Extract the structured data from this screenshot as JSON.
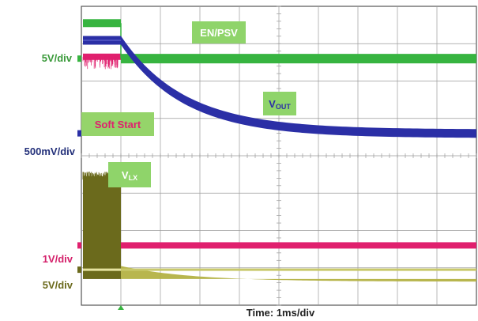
{
  "chart_data": {
    "type": "line",
    "title": "",
    "xlabel": "Time: 1ms/div",
    "x_divisions": 10,
    "y_divisions": 8,
    "grid": true,
    "time_unit": "ms",
    "step_time_ms": 1.0,
    "channels": [
      {
        "name": "EN/PSV",
        "scale_label": "5V/div",
        "scale": "5V/div",
        "color": "#37b440",
        "high_div": 7.55,
        "low_div": 6.6
      },
      {
        "name": "VOUT",
        "scale_label": "500mV/div",
        "scale": "500mV/div",
        "color": "#2b2fa6",
        "start_div": 7.1,
        "end_div": 4.6,
        "tau_ms": 1.6
      },
      {
        "name": "Soft Start",
        "scale_label": "1V/div",
        "scale": "1V/div",
        "color": "#e0206e",
        "high_div": 6.65,
        "low_div": 1.6
      },
      {
        "name": "VLX",
        "scale_label": "5V/div",
        "scale": "5V/div",
        "color": "#6b6a1c",
        "band_top_div": 3.45,
        "band_bottom_div": 0.7,
        "settle_div": 0.95,
        "tau_ms": 1.8
      }
    ],
    "annotations": [
      {
        "text": "EN/PSV",
        "for": "EN/PSV"
      },
      {
        "text": "V",
        "sub": "OUT",
        "for": "VOUT"
      },
      {
        "text": "Soft Start",
        "for": "Soft Start"
      },
      {
        "text": "V",
        "sub": "LX",
        "for": "VLX"
      }
    ],
    "colors": {
      "grid": "#9a9a9a",
      "frame": "#555555",
      "label_box": "#8fd46a",
      "label_box_pink": "#95d46a"
    }
  }
}
